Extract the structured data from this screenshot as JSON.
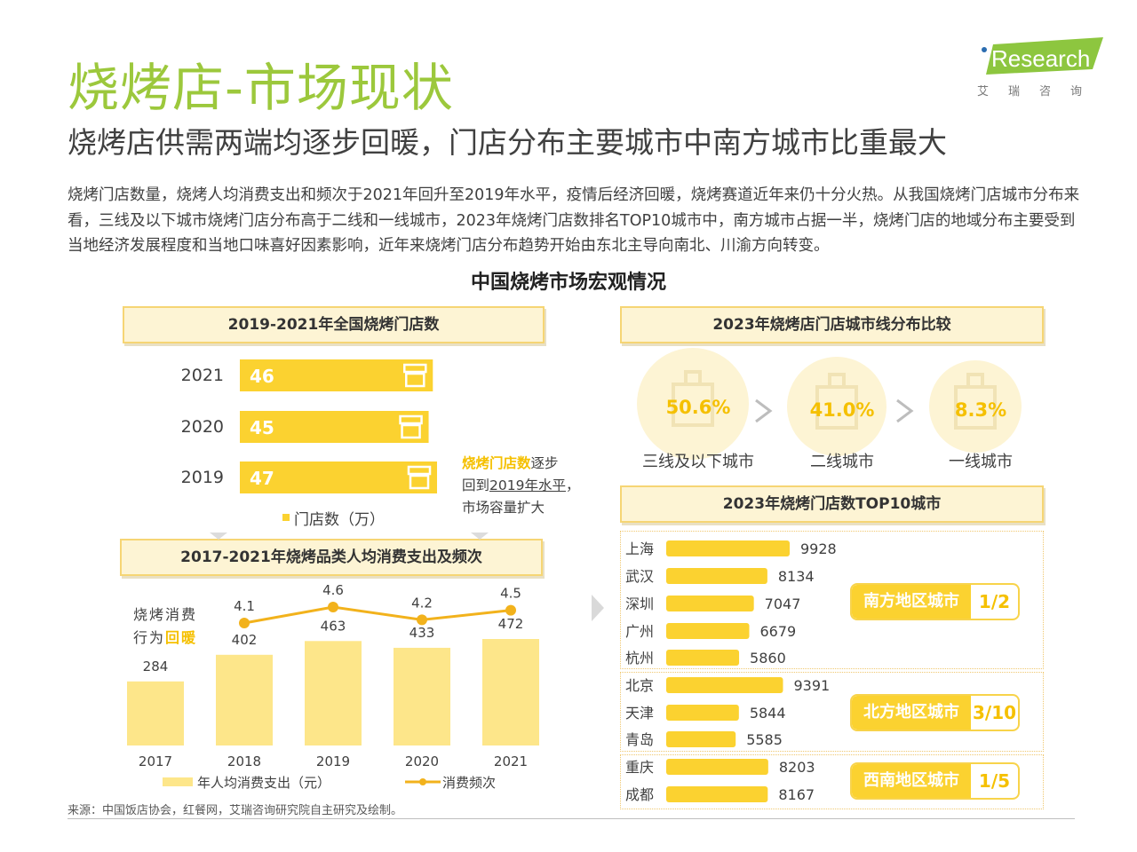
{
  "header": {
    "title": "烧烤店-市场现状",
    "subtitle": "烧烤店供需两端均逐步回暖，门店分布主要城市中南方城市比重最大",
    "logo_text": "iResearch",
    "logo_cn": "艾瑞咨询"
  },
  "intro": "烧烤门店数量，烧烤人均消费支出和频次于2021年回升至2019年水平，疫情后经济回暖，烧烤赛道近年来仍十分火热。从我国烧烤门店城市分布来看，三线及以下城市烧烤门店分布高于二线和一线城市，2023年烧烤门店数排名TOP10城市中，南方城市占据一半，烧烤门店的地域分布主要受到当地经济发展程度和当地口味喜好因素影响，近年来烧烤门店分布趋势开始由东北主导向南北、川渝方向转变。",
  "main_title": "中国烧烤市场宏观情况",
  "boxes": {
    "stores": "2019-2021年全国烧烤门店数",
    "consumption": "2017-2021年烧烤品类人均消费支出及频次",
    "tier": "2023年烧烤店门店城市线分布比较",
    "top10": "2023年烧烤门店数TOP10城市"
  },
  "note": {
    "hl": "烧烤门店数",
    "t1": "逐步",
    "t2": "回到",
    "ul": "2019年水平",
    "t3": "，",
    "t4": "市场容量扩大"
  },
  "behavior": {
    "t1": "烧烤消费",
    "t2": "行为",
    "hl": "回暖"
  },
  "source": "来源：中国饭店协会，红餐网，艾瑞咨询研究院自主研究及绘制。",
  "regions": [
    {
      "label": "南方地区城市",
      "value": "1/2"
    },
    {
      "label": "北方地区城市",
      "value": "3/10"
    },
    {
      "label": "西南地区城市",
      "value": "1/5"
    }
  ],
  "colors": {
    "accent": "#9cc83c",
    "bar": "#fbd230",
    "bar_light": "#fde68a",
    "line": "#f2b21c"
  },
  "chart_data": [
    {
      "type": "bar",
      "title": "2019-2021年全国烧烤门店数",
      "categories": [
        "2021",
        "2020",
        "2019"
      ],
      "values": [
        46,
        45,
        47
      ],
      "legend": "门店数（万）",
      "orientation": "horizontal"
    },
    {
      "type": "bar",
      "title": "2017-2021年烧烤品类人均消费支出及频次",
      "categories": [
        "2017",
        "2018",
        "2019",
        "2020",
        "2021"
      ],
      "series": [
        {
          "name": "年人均消费支出（元）",
          "type": "bar",
          "values": [
            284,
            402,
            463,
            433,
            472
          ]
        },
        {
          "name": "消费频次",
          "type": "line",
          "values": [
            null,
            4.1,
            4.6,
            4.2,
            4.5
          ]
        }
      ]
    },
    {
      "type": "bubble",
      "title": "2023年烧烤店门店城市线分布比较",
      "categories": [
        "三线及以下城市",
        "二线城市",
        "一线城市"
      ],
      "values": [
        50.6,
        41.0,
        8.3
      ],
      "value_labels": [
        "50.6%",
        "41.0%",
        "8.3%"
      ]
    },
    {
      "type": "bar",
      "title": "2023年烧烤门店数TOP10城市",
      "orientation": "horizontal",
      "categories": [
        "上海",
        "武汉",
        "深圳",
        "广州",
        "杭州",
        "北京",
        "天津",
        "青岛",
        "重庆",
        "成都"
      ],
      "values": [
        9928,
        8134,
        7047,
        6679,
        5860,
        9391,
        5844,
        5585,
        8203,
        8167
      ]
    }
  ]
}
